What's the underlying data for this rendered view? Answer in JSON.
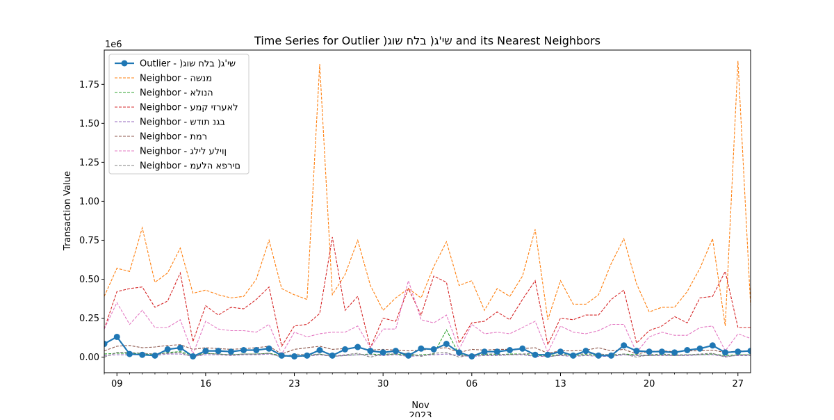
{
  "chart_data": {
    "type": "line",
    "title": "Time Series for Outlier )שי'ג( בלח שוג and its Nearest Neighbors",
    "xlabel": "",
    "ylabel": "Transaction Value",
    "y_offset_label": "1e6",
    "x_start": "2023-10-08",
    "ylim": [
      -100000,
      1970000
    ],
    "yticks": [
      0,
      250000,
      500000,
      750000,
      1000000,
      1250000,
      1500000,
      1750000
    ],
    "ytick_labels": [
      "0.00",
      "0.25",
      "0.50",
      "0.75",
      "1.00",
      "1.25",
      "1.50",
      "1.75"
    ],
    "xticks": [
      {
        "day": 1,
        "label": "09"
      },
      {
        "day": 8,
        "label": "16"
      },
      {
        "day": 15,
        "label": "23"
      },
      {
        "day": 22,
        "label": "30"
      },
      {
        "day": 29,
        "label": "06"
      },
      {
        "day": 36,
        "label": "13"
      },
      {
        "day": 43,
        "label": "20"
      },
      {
        "day": 50,
        "label": "27"
      }
    ],
    "x_minor_ticks": [
      0,
      2,
      3,
      4,
      5,
      6,
      7,
      9,
      10,
      11,
      12,
      13,
      14,
      16,
      17,
      18,
      19,
      20,
      21,
      23,
      24,
      25,
      26,
      27,
      28,
      30,
      31,
      32,
      33,
      34,
      35,
      37,
      38,
      39,
      40,
      41,
      42,
      44,
      45,
      46,
      47,
      48,
      49
    ],
    "x_secondary_label": [
      "Nov",
      "2023"
    ],
    "legend_position": "upper left",
    "grid": false,
    "series": [
      {
        "name": "Outlier - )שי'ג( בלח שוג",
        "color": "#1f77b4",
        "style": "solid-marker",
        "values": [
          85000,
          130000,
          20000,
          15000,
          10000,
          50000,
          60000,
          5000,
          40000,
          40000,
          35000,
          45000,
          45000,
          55000,
          10000,
          5000,
          10000,
          45000,
          10000,
          50000,
          65000,
          40000,
          30000,
          40000,
          10000,
          55000,
          50000,
          85000,
          30000,
          5000,
          35000,
          35000,
          45000,
          55000,
          15000,
          15000,
          35000,
          10000,
          40000,
          10000,
          10000,
          75000,
          40000,
          35000,
          35000,
          30000,
          45000,
          55000,
          75000,
          30000,
          35000,
          40000
        ]
      },
      {
        "name": "Neighbor - מנשה",
        "color": "#ff7f0e",
        "style": "dashed",
        "values": [
          390000,
          570000,
          550000,
          830000,
          480000,
          540000,
          700000,
          410000,
          430000,
          400000,
          380000,
          390000,
          500000,
          750000,
          440000,
          400000,
          370000,
          1880000,
          400000,
          530000,
          750000,
          460000,
          300000,
          380000,
          440000,
          380000,
          580000,
          740000,
          460000,
          490000,
          300000,
          440000,
          390000,
          520000,
          820000,
          240000,
          490000,
          340000,
          340000,
          400000,
          600000,
          760000,
          470000,
          290000,
          320000,
          320000,
          420000,
          570000,
          760000,
          200000,
          1900000,
          330000
        ]
      },
      {
        "name": "Neighbor - הנולא",
        "color": "#2ca02c",
        "style": "dashed",
        "values": [
          20000,
          25000,
          25000,
          20000,
          15000,
          30000,
          35000,
          10000,
          25000,
          20000,
          15000,
          20000,
          20000,
          25000,
          10000,
          5000,
          5000,
          20000,
          5000,
          10000,
          15000,
          20000,
          15000,
          20000,
          10000,
          15000,
          20000,
          175000,
          15000,
          10000,
          15000,
          15000,
          20000,
          20000,
          10000,
          10000,
          15000,
          10000,
          15000,
          10000,
          10000,
          20000,
          15000,
          10000,
          15000,
          10000,
          15000,
          15000,
          20000,
          10000,
          15000,
          15000
        ]
      },
      {
        "name": "Neighbor - לאערזי קמע",
        "color": "#d62728",
        "style": "dashed",
        "values": [
          180000,
          420000,
          440000,
          450000,
          320000,
          360000,
          540000,
          100000,
          330000,
          270000,
          320000,
          310000,
          370000,
          450000,
          70000,
          200000,
          210000,
          280000,
          770000,
          300000,
          390000,
          60000,
          250000,
          230000,
          440000,
          270000,
          520000,
          480000,
          90000,
          220000,
          230000,
          290000,
          240000,
          370000,
          490000,
          80000,
          250000,
          240000,
          270000,
          270000,
          370000,
          430000,
          90000,
          170000,
          200000,
          260000,
          220000,
          380000,
          390000,
          550000,
          190000,
          190000
        ]
      },
      {
        "name": "Neighbor - בגנ תודש",
        "color": "#9467bd",
        "style": "dashed",
        "values": [
          10000,
          15000,
          15000,
          15000,
          10000,
          20000,
          20000,
          5000,
          15000,
          15000,
          10000,
          15000,
          15000,
          20000,
          5000,
          5000,
          5000,
          15000,
          5000,
          10000,
          15000,
          15000,
          10000,
          15000,
          5000,
          10000,
          15000,
          20000,
          10000,
          5000,
          10000,
          10000,
          15000,
          15000,
          5000,
          5000,
          10000,
          5000,
          10000,
          5000,
          5000,
          15000,
          10000,
          10000,
          10000,
          10000,
          10000,
          15000,
          15000,
          5000,
          10000,
          10000
        ]
      },
      {
        "name": "Neighbor - רמת",
        "color": "#8c564b",
        "style": "dashed",
        "values": [
          40000,
          70000,
          75000,
          60000,
          65000,
          75000,
          80000,
          50000,
          60000,
          55000,
          50000,
          55000,
          60000,
          70000,
          20000,
          50000,
          60000,
          70000,
          50000,
          55000,
          60000,
          45000,
          50000,
          45000,
          40000,
          45000,
          55000,
          60000,
          30000,
          50000,
          45000,
          50000,
          50000,
          55000,
          60000,
          25000,
          40000,
          40000,
          45000,
          60000,
          40000,
          50000,
          20000,
          35000,
          40000,
          35000,
          40000,
          40000,
          45000,
          30000,
          40000,
          40000
        ]
      },
      {
        "name": "Neighbor - ןוילע לילג",
        "color": "#e377c2",
        "style": "dashed",
        "values": [
          180000,
          350000,
          210000,
          300000,
          190000,
          190000,
          240000,
          20000,
          230000,
          180000,
          170000,
          170000,
          160000,
          210000,
          20000,
          160000,
          130000,
          150000,
          160000,
          160000,
          200000,
          60000,
          180000,
          180000,
          490000,
          240000,
          220000,
          270000,
          50000,
          210000,
          150000,
          160000,
          150000,
          190000,
          230000,
          30000,
          200000,
          160000,
          150000,
          170000,
          210000,
          210000,
          30000,
          130000,
          160000,
          140000,
          140000,
          190000,
          200000,
          40000,
          150000,
          120000
        ]
      },
      {
        "name": "Neighbor - םירפא הלעמ",
        "color": "#7f7f7f",
        "style": "dashed",
        "values": [
          0,
          30000,
          30000,
          25000,
          20000,
          25000,
          30000,
          0,
          25000,
          20000,
          15000,
          20000,
          20000,
          25000,
          0,
          20000,
          15000,
          20000,
          5000,
          15000,
          25000,
          0,
          20000,
          20000,
          25000,
          5000,
          25000,
          30000,
          0,
          15000,
          20000,
          20000,
          15000,
          20000,
          25000,
          0,
          15000,
          20000,
          20000,
          20000,
          15000,
          20000,
          0,
          15000,
          20000,
          15000,
          15000,
          20000,
          25000,
          0,
          15000,
          15000
        ]
      }
    ]
  }
}
